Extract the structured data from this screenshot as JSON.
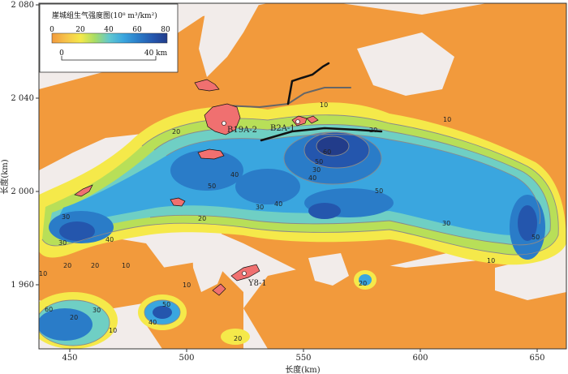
{
  "map": {
    "x_axis": {
      "title": "长度(km)",
      "ticks": [
        "450",
        "500",
        "550",
        "600",
        "650"
      ]
    },
    "y_axis": {
      "title": "长度(km)",
      "ticks": [
        "2 080",
        "2 040",
        "2 000",
        "1 960"
      ]
    },
    "legend": {
      "title": "崖城组生气强度图(10⁸ m³/km²)",
      "colorbar_ticks": [
        "0",
        "20",
        "40",
        "60",
        "80"
      ],
      "scalebar_ticks": [
        "0",
        "40 km"
      ],
      "colors": [
        "#f29a3c",
        "#f6c24a",
        "#f5e94a",
        "#cfe34b",
        "#7fd2b0",
        "#3fb4e0",
        "#2f83d0",
        "#2456ad",
        "#1f3f8f"
      ]
    },
    "wells": [
      {
        "name": "B19A-2"
      },
      {
        "name": "B2A-1"
      },
      {
        "name": "Y8-1"
      }
    ],
    "contour_labels": [
      "10",
      "20",
      "20",
      "30",
      "40",
      "50",
      "60",
      "50",
      "40",
      "30",
      "20",
      "10",
      "30",
      "40",
      "50",
      "30",
      "20",
      "10",
      "50",
      "40",
      "30",
      "20",
      "10",
      "20",
      "10",
      "30",
      "50",
      "60",
      "40",
      "20",
      "10",
      "20",
      "10"
    ],
    "colors": {
      "background": "#f2ecea",
      "outside": "#f29a3c",
      "low": "#f6c24a",
      "fault": "#111111",
      "structure": "#f07070",
      "contour": "#8a8a8a"
    }
  }
}
